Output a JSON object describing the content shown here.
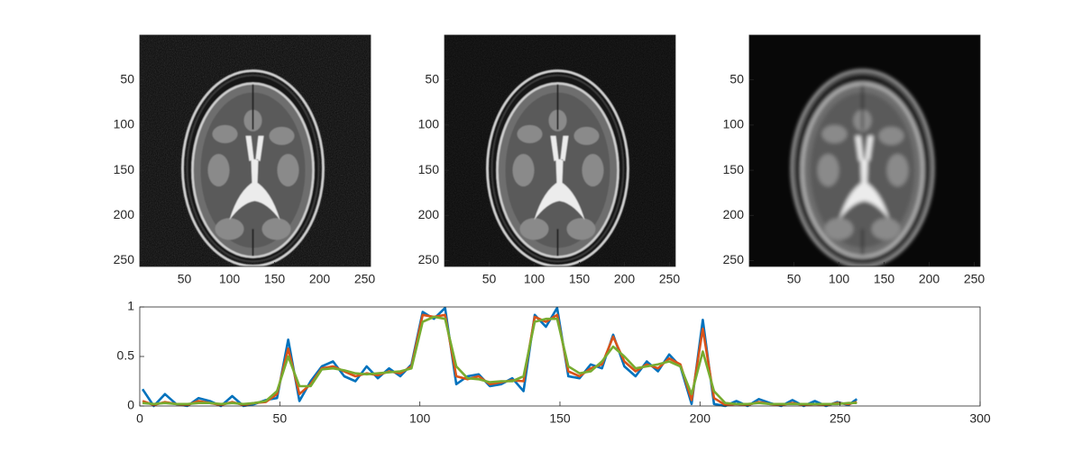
{
  "chart_data": [
    {
      "type": "image",
      "xlim": [
        0.5,
        256.5
      ],
      "ylim": [
        0.5,
        256.5
      ],
      "ydir": "reverse",
      "xticks": [
        50,
        100,
        150,
        200,
        250
      ],
      "yticks": [
        50,
        100,
        150,
        200,
        250
      ]
    },
    {
      "type": "image",
      "xlim": [
        0.5,
        256.5
      ],
      "ylim": [
        0.5,
        256.5
      ],
      "ydir": "reverse",
      "xticks": [
        50,
        100,
        150,
        200,
        250
      ],
      "yticks": [
        50,
        100,
        150,
        200,
        250
      ]
    },
    {
      "type": "image",
      "xlim": [
        0.5,
        256.5
      ],
      "ylim": [
        0.5,
        256.5
      ],
      "ydir": "reverse",
      "xticks": [
        50,
        100,
        150,
        200,
        250
      ],
      "yticks": [
        50,
        100,
        150,
        200,
        250
      ]
    },
    {
      "type": "line",
      "xlim": [
        0,
        300
      ],
      "ylim": [
        0,
        1
      ],
      "xticks": [
        0,
        50,
        100,
        150,
        200,
        250,
        300
      ],
      "yticks": [
        0,
        0.5,
        1
      ],
      "x": [
        1,
        5,
        9,
        13,
        17,
        21,
        25,
        29,
        33,
        37,
        41,
        45,
        49,
        53,
        57,
        61,
        65,
        69,
        73,
        77,
        81,
        85,
        89,
        93,
        97,
        101,
        105,
        109,
        113,
        117,
        121,
        125,
        129,
        133,
        137,
        141,
        145,
        149,
        153,
        157,
        161,
        165,
        169,
        173,
        177,
        181,
        185,
        189,
        193,
        197,
        201,
        205,
        209,
        213,
        217,
        221,
        225,
        229,
        233,
        237,
        241,
        245,
        249,
        253,
        256
      ],
      "series": [
        {
          "color": "#0072bd",
          "values": [
            0.17,
            0.0,
            0.12,
            0.02,
            0.0,
            0.08,
            0.05,
            0.0,
            0.1,
            0.0,
            0.02,
            0.06,
            0.08,
            0.67,
            0.05,
            0.25,
            0.4,
            0.45,
            0.3,
            0.25,
            0.4,
            0.28,
            0.38,
            0.3,
            0.42,
            0.95,
            0.88,
            0.99,
            0.22,
            0.3,
            0.32,
            0.2,
            0.22,
            0.28,
            0.15,
            0.92,
            0.8,
            0.99,
            0.3,
            0.28,
            0.42,
            0.38,
            0.72,
            0.4,
            0.3,
            0.45,
            0.35,
            0.52,
            0.4,
            0.02,
            0.87,
            0.02,
            0.0,
            0.05,
            0.0,
            0.07,
            0.03,
            0.0,
            0.06,
            0.0,
            0.05,
            0.0,
            0.04,
            0.01,
            0.07
          ]
        },
        {
          "color": "#d95319",
          "values": [
            0.05,
            0.01,
            0.04,
            0.02,
            0.01,
            0.05,
            0.03,
            0.01,
            0.04,
            0.01,
            0.03,
            0.04,
            0.12,
            0.58,
            0.12,
            0.22,
            0.38,
            0.4,
            0.35,
            0.3,
            0.33,
            0.31,
            0.35,
            0.33,
            0.4,
            0.92,
            0.9,
            0.92,
            0.3,
            0.27,
            0.3,
            0.22,
            0.24,
            0.26,
            0.25,
            0.9,
            0.85,
            0.92,
            0.35,
            0.3,
            0.38,
            0.42,
            0.7,
            0.45,
            0.35,
            0.42,
            0.38,
            0.48,
            0.42,
            0.06,
            0.78,
            0.08,
            0.01,
            0.02,
            0.01,
            0.04,
            0.02,
            0.01,
            0.03,
            0.01,
            0.02,
            0.01,
            0.03,
            0.02,
            0.04
          ]
        },
        {
          "color": "#77ac30",
          "values": [
            0.03,
            0.02,
            0.03,
            0.02,
            0.02,
            0.03,
            0.03,
            0.02,
            0.03,
            0.02,
            0.03,
            0.05,
            0.15,
            0.5,
            0.2,
            0.2,
            0.37,
            0.38,
            0.36,
            0.33,
            0.32,
            0.33,
            0.34,
            0.35,
            0.38,
            0.85,
            0.9,
            0.88,
            0.4,
            0.28,
            0.27,
            0.24,
            0.25,
            0.25,
            0.3,
            0.85,
            0.88,
            0.88,
            0.4,
            0.33,
            0.35,
            0.45,
            0.6,
            0.5,
            0.38,
            0.4,
            0.42,
            0.45,
            0.4,
            0.12,
            0.55,
            0.15,
            0.03,
            0.02,
            0.02,
            0.03,
            0.02,
            0.02,
            0.02,
            0.02,
            0.02,
            0.02,
            0.02,
            0.03,
            0.03
          ]
        }
      ]
    }
  ]
}
